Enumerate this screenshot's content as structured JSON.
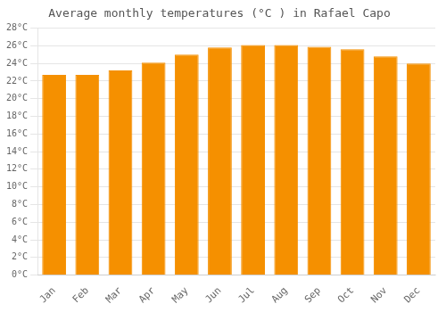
{
  "chart_data": {
    "type": "bar",
    "title": "Average monthly temperatures (°C ) in Rafael Capo",
    "categories": [
      "Jan",
      "Feb",
      "Mar",
      "Apr",
      "May",
      "Jun",
      "Jul",
      "Aug",
      "Sep",
      "Oct",
      "Nov",
      "Dec"
    ],
    "values": [
      22.7,
      22.7,
      23.2,
      24.1,
      25.0,
      25.8,
      26.1,
      26.1,
      25.9,
      25.6,
      24.8,
      24.0
    ],
    "color": "#F59000",
    "ylim": [
      0,
      28
    ],
    "yticks": [
      {
        "value": 0,
        "label": "0°C"
      },
      {
        "value": 2,
        "label": "2°C"
      },
      {
        "value": 4,
        "label": "4°C"
      },
      {
        "value": 6,
        "label": "6°C"
      },
      {
        "value": 8,
        "label": "8°C"
      },
      {
        "value": 10,
        "label": "10°C"
      },
      {
        "value": 12,
        "label": "12°C"
      },
      {
        "value": 14,
        "label": "14°C"
      },
      {
        "value": 16,
        "label": "16°C"
      },
      {
        "value": 18,
        "label": "18°C"
      },
      {
        "value": 20,
        "label": "20°C"
      },
      {
        "value": 22,
        "label": "22°C"
      },
      {
        "value": 24,
        "label": "24°C"
      },
      {
        "value": 26,
        "label": "26°C"
      },
      {
        "value": 28,
        "label": "28°C"
      }
    ],
    "grid": true
  }
}
